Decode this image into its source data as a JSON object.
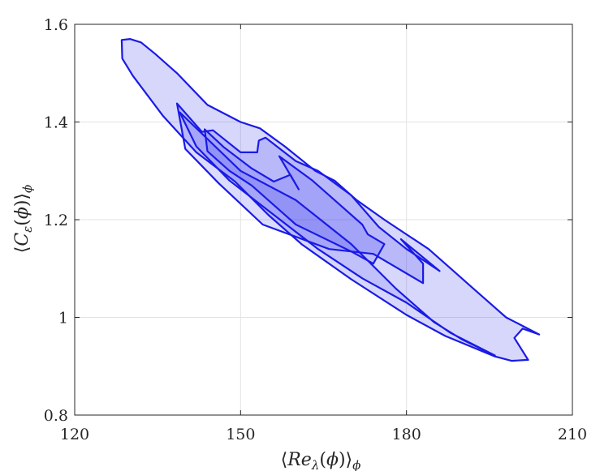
{
  "chart_data": {
    "type": "area",
    "title": "",
    "xlabel": "⟨Re_λ(ϕ)⟩_ϕ",
    "ylabel": "⟨C_ε(ϕ)⟩_ϕ",
    "xlim": [
      120,
      210
    ],
    "ylim": [
      0.8,
      1.6
    ],
    "xticks": [
      120,
      150,
      180,
      210
    ],
    "xtick_labels": [
      "120",
      "150",
      "180",
      "210"
    ],
    "yticks": [
      0.8,
      1.0,
      1.2,
      1.4,
      1.6
    ],
    "ytick_labels": [
      "0.8",
      "1",
      "1.2",
      "1.4",
      "1.6"
    ],
    "grid": true,
    "colors": {
      "edge": "#1a1ae6",
      "fill": "#2020f0",
      "grid": "#e3e3e3",
      "axis": "#262626"
    },
    "series": [
      {
        "role": "outer-contour",
        "fill_opacity": 0.18,
        "points": [
          [
            128.5,
            1.568
          ],
          [
            130,
            1.57
          ],
          [
            132,
            1.563
          ],
          [
            134.5,
            1.54
          ],
          [
            138.5,
            1.5
          ],
          [
            144,
            1.435
          ],
          [
            150,
            1.4
          ],
          [
            153.5,
            1.387
          ],
          [
            158,
            1.35
          ],
          [
            163.5,
            1.3
          ],
          [
            167,
            1.28
          ],
          [
            171,
            1.24
          ],
          [
            176,
            1.2
          ],
          [
            184,
            1.14
          ],
          [
            188,
            1.1
          ],
          [
            192,
            1.06
          ],
          [
            198,
            1.0
          ],
          [
            204,
            0.965
          ],
          [
            201,
            0.977
          ],
          [
            199.5,
            0.958
          ],
          [
            202,
            0.913
          ],
          [
            199,
            0.911
          ],
          [
            196,
            0.92
          ],
          [
            187,
            0.962
          ],
          [
            180,
            1.005
          ],
          [
            170,
            1.078
          ],
          [
            161,
            1.15
          ],
          [
            155,
            1.21
          ],
          [
            149,
            1.278
          ],
          [
            142,
            1.338
          ],
          [
            136,
            1.412
          ],
          [
            130.5,
            1.495
          ],
          [
            128.6,
            1.53
          ]
        ]
      },
      {
        "role": "middle-contour",
        "fill_opacity": 0.16,
        "points": [
          [
            143,
            1.38
          ],
          [
            145,
            1.383
          ],
          [
            150,
            1.338
          ],
          [
            153,
            1.338
          ],
          [
            153.3,
            1.362
          ],
          [
            154.5,
            1.368
          ],
          [
            160,
            1.32
          ],
          [
            164,
            1.3
          ],
          [
            170,
            1.25
          ],
          [
            175,
            1.185
          ],
          [
            180,
            1.14
          ],
          [
            186,
            1.095
          ],
          [
            179,
            1.16
          ],
          [
            183,
            1.11
          ],
          [
            183,
            1.07
          ],
          [
            174,
            1.13
          ],
          [
            166,
            1.14
          ],
          [
            154,
            1.19
          ],
          [
            146,
            1.275
          ],
          [
            140,
            1.345
          ],
          [
            138.5,
            1.438
          ]
        ]
      },
      {
        "role": "inner-contour",
        "fill_opacity": 0.14,
        "points": [
          [
            143.5,
            1.385
          ],
          [
            147,
            1.348
          ],
          [
            152,
            1.305
          ],
          [
            156,
            1.278
          ],
          [
            159,
            1.292
          ],
          [
            160.5,
            1.262
          ],
          [
            157,
            1.33
          ],
          [
            163,
            1.28
          ],
          [
            172,
            1.19
          ],
          [
            173,
            1.17
          ],
          [
            176,
            1.15
          ],
          [
            174,
            1.11
          ],
          [
            170,
            1.135
          ],
          [
            160,
            1.19
          ],
          [
            152,
            1.27
          ],
          [
            148,
            1.3
          ],
          [
            144,
            1.34
          ]
        ]
      },
      {
        "role": "core-ridge",
        "fill_opacity": 0.12,
        "points": [
          [
            139,
            1.42
          ],
          [
            150,
            1.3
          ],
          [
            160,
            1.24
          ],
          [
            170,
            1.15
          ],
          [
            178,
            1.06
          ],
          [
            185,
            0.99
          ],
          [
            190,
            0.955
          ],
          [
            196,
            0.922
          ],
          [
            188,
            0.968
          ],
          [
            180,
            1.03
          ],
          [
            172,
            1.08
          ],
          [
            164,
            1.14
          ],
          [
            156,
            1.21
          ],
          [
            148,
            1.28
          ],
          [
            142,
            1.35
          ]
        ]
      }
    ]
  }
}
